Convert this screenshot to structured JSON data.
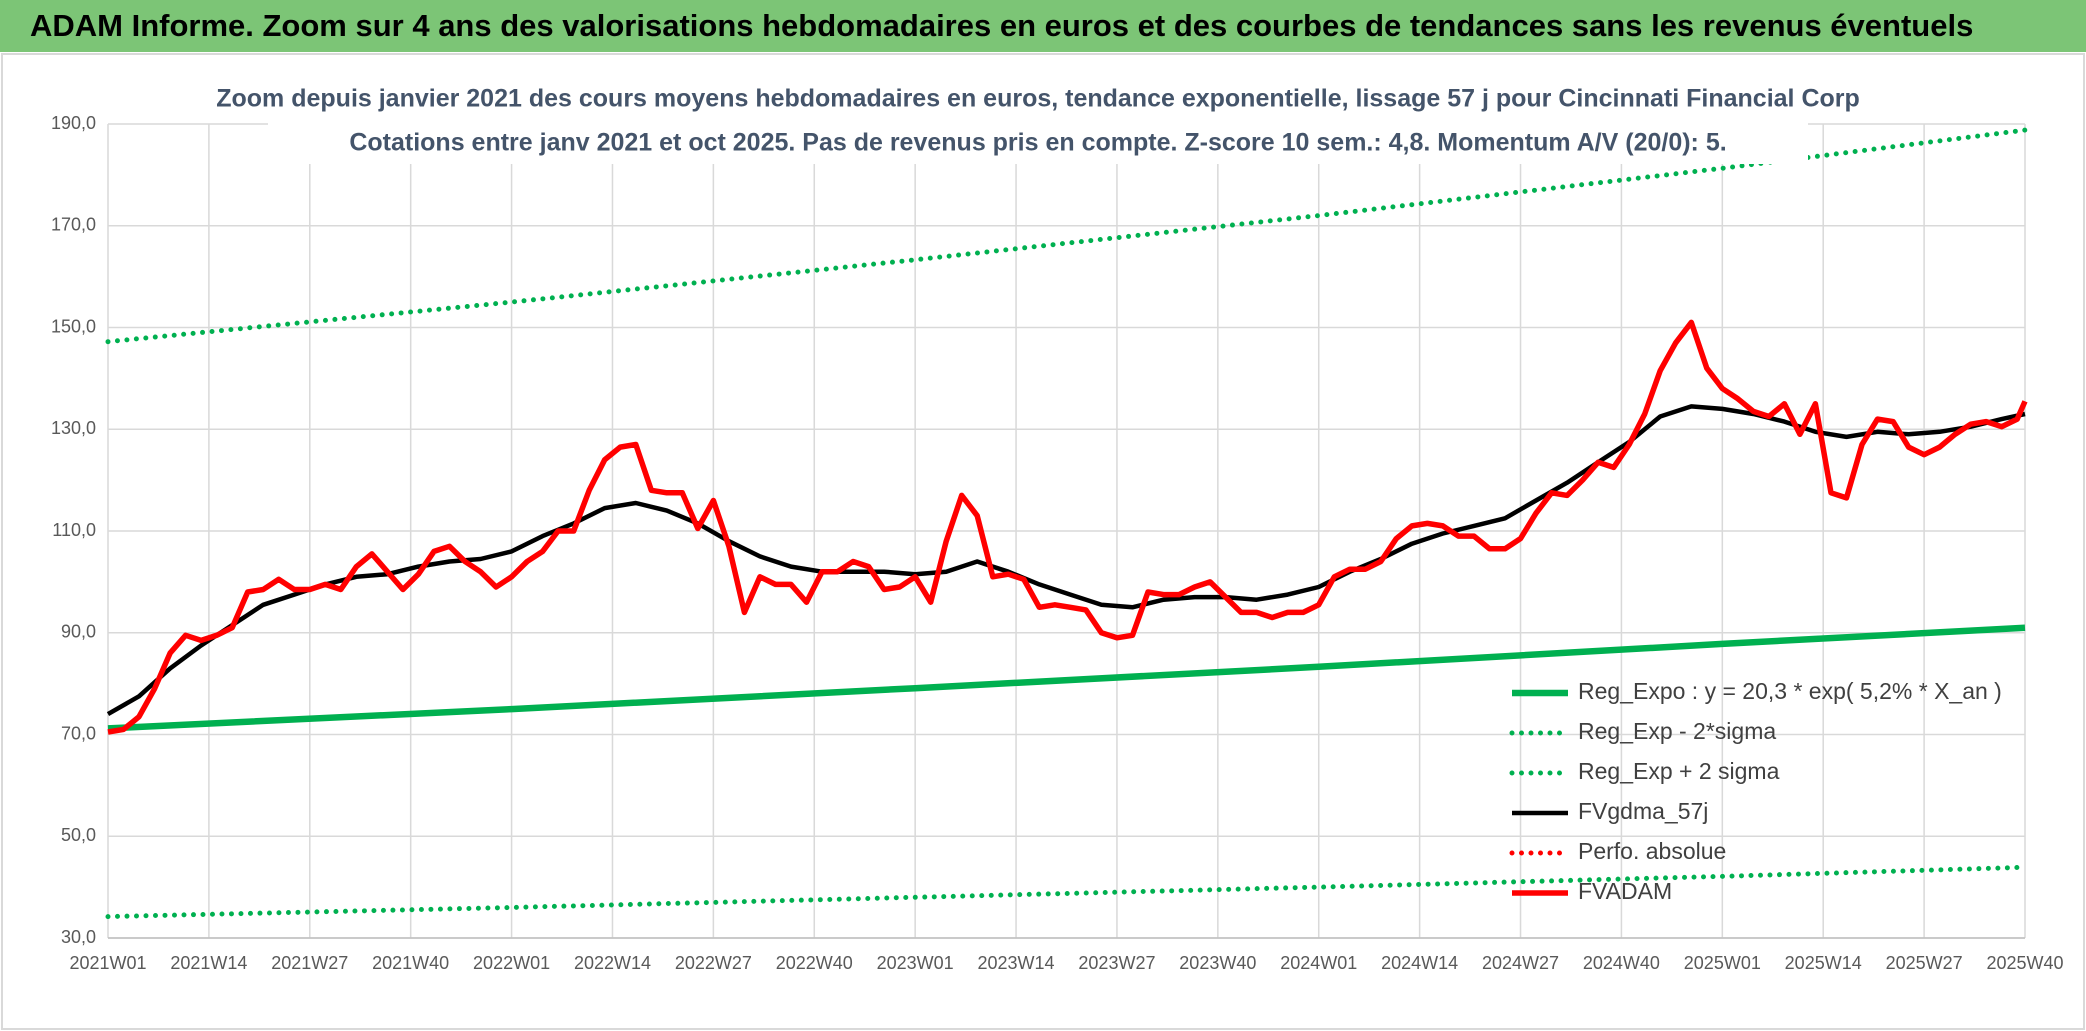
{
  "chart_data": {
    "type": "line",
    "title": "ADAM Informe. Zoom sur 4 ans des valorisations hebdomadaires en euros et des courbes de tendances sans les revenus éventuels",
    "subtitle": [
      "Zoom depuis janvier 2021 des cours moyens hebdomadaires en euros, tendance exponentielle, lissage 57 j pour Cincinnati Financial Corp",
      "Cotations entre janv 2021 et oct 2025. Pas de revenus pris en compte. Z-score 10 sem.: 4,8. Momentum A/V (20/0): 5."
    ],
    "xlim": [
      0,
      247
    ],
    "xticks": [
      {
        "value": 0,
        "label": "2021W01"
      },
      {
        "value": 13,
        "label": "2021W14"
      },
      {
        "value": 26,
        "label": "2021W27"
      },
      {
        "value": 39,
        "label": "2021W40"
      },
      {
        "value": 52,
        "label": "2022W01"
      },
      {
        "value": 65,
        "label": "2022W14"
      },
      {
        "value": 78,
        "label": "2022W27"
      },
      {
        "value": 91,
        "label": "2022W40"
      },
      {
        "value": 104,
        "label": "2023W01"
      },
      {
        "value": 117,
        "label": "2023W14"
      },
      {
        "value": 130,
        "label": "2023W27"
      },
      {
        "value": 143,
        "label": "2023W40"
      },
      {
        "value": 156,
        "label": "2024W01"
      },
      {
        "value": 169,
        "label": "2024W14"
      },
      {
        "value": 182,
        "label": "2024W27"
      },
      {
        "value": 195,
        "label": "2024W40"
      },
      {
        "value": 208,
        "label": "2025W01"
      },
      {
        "value": 221,
        "label": "2025W14"
      },
      {
        "value": 234,
        "label": "2025W27"
      },
      {
        "value": 247,
        "label": "2025W40"
      }
    ],
    "ylim": [
      30,
      190
    ],
    "yticks": [
      {
        "value": 30,
        "label": "30,0"
      },
      {
        "value": 50,
        "label": "50,0"
      },
      {
        "value": 70,
        "label": "70,0"
      },
      {
        "value": 90,
        "label": "90,0"
      },
      {
        "value": 110,
        "label": "110,0"
      },
      {
        "value": 130,
        "label": "130,0"
      },
      {
        "value": 150,
        "label": "150,0"
      },
      {
        "value": 170,
        "label": "170,0"
      },
      {
        "value": 190,
        "label": "190,0"
      }
    ],
    "grid": true,
    "legend": "lower right",
    "series": [
      {
        "name": "Reg_Expo : y = 20,3 * exp( 5,2% *  X_an )",
        "color": "#00b050",
        "style": "solid",
        "x": [
          0,
          52,
          104,
          156,
          208,
          247
        ],
        "values": [
          71.2,
          75.0,
          79.1,
          83.3,
          87.8,
          91.0
        ]
      },
      {
        "name": "Reg_Exp - 2*sigma",
        "color": "#00b050",
        "style": "dotted",
        "x": [
          0,
          52,
          104,
          156,
          208,
          247
        ],
        "values": [
          34.2,
          36.0,
          38.0,
          40.0,
          42.1,
          43.9
        ]
      },
      {
        "name": "Reg_Exp + 2 sigma",
        "color": "#00b050",
        "style": "dotted",
        "x": [
          0,
          52,
          104,
          156,
          208,
          247
        ],
        "values": [
          147.2,
          155.0,
          163.3,
          172.0,
          181.3,
          188.8
        ]
      },
      {
        "name": "FVgdma_57j",
        "color": "#000000",
        "style": "solid",
        "x": [
          0,
          4,
          8,
          12,
          16,
          20,
          24,
          28,
          32,
          36,
          40,
          44,
          48,
          52,
          56,
          60,
          64,
          68,
          72,
          76,
          80,
          84,
          88,
          92,
          96,
          100,
          104,
          108,
          112,
          116,
          120,
          124,
          128,
          132,
          136,
          140,
          144,
          148,
          152,
          156,
          160,
          164,
          168,
          172,
          176,
          180,
          184,
          188,
          192,
          196,
          200,
          204,
          208,
          212,
          216,
          220,
          224,
          228,
          232,
          236,
          240,
          244,
          247
        ],
        "values": [
          74,
          77.5,
          83,
          87.5,
          91.5,
          95.5,
          97.5,
          99.5,
          101,
          101.5,
          103,
          104,
          104.5,
          106,
          109,
          111.5,
          114.5,
          115.5,
          114,
          111.5,
          108,
          105,
          103,
          102,
          102,
          102,
          101.5,
          102,
          104,
          102,
          99.5,
          97.5,
          95.5,
          95,
          96.5,
          97,
          97,
          96.5,
          97.5,
          99,
          102,
          104.5,
          107.5,
          109.5,
          111,
          112.5,
          116,
          119.5,
          123.5,
          127.5,
          132.5,
          134.5,
          134,
          133,
          131.5,
          129.5,
          128.5,
          129.5,
          129,
          129.5,
          130.5,
          132,
          133
        ]
      },
      {
        "name": "Perfo. absolue",
        "color": "#ff0000",
        "style": "dotted"
      },
      {
        "name": "FVADAM",
        "color": "#ff0000",
        "style": "solid",
        "x": [
          0,
          2,
          4,
          6,
          8,
          10,
          12,
          14,
          16,
          18,
          20,
          22,
          24,
          26,
          28,
          30,
          32,
          34,
          36,
          38,
          40,
          42,
          44,
          46,
          48,
          50,
          52,
          54,
          56,
          58,
          60,
          62,
          64,
          66,
          68,
          70,
          72,
          74,
          76,
          78,
          80,
          82,
          84,
          86,
          88,
          90,
          92,
          94,
          96,
          98,
          100,
          102,
          104,
          106,
          108,
          110,
          112,
          114,
          116,
          118,
          120,
          122,
          124,
          126,
          128,
          130,
          132,
          134,
          136,
          138,
          140,
          142,
          144,
          146,
          148,
          150,
          152,
          154,
          156,
          158,
          160,
          162,
          164,
          166,
          168,
          170,
          172,
          174,
          176,
          178,
          180,
          182,
          184,
          186,
          188,
          190,
          192,
          194,
          196,
          198,
          200,
          202,
          204,
          206,
          208,
          210,
          212,
          214,
          216,
          218,
          220,
          222,
          224,
          226,
          228,
          230,
          232,
          234,
          236,
          238,
          240,
          242,
          244,
          246,
          247
        ],
        "values": [
          70.5,
          71,
          73.5,
          79,
          86,
          89.5,
          88.5,
          89.5,
          91,
          98,
          98.5,
          100.5,
          98.5,
          98.5,
          99.5,
          98.5,
          103,
          105.5,
          102,
          98.5,
          101.5,
          106,
          107,
          104,
          102,
          99,
          101,
          104,
          106,
          110,
          110,
          118,
          124,
          126.5,
          127,
          118,
          117.5,
          117.5,
          110.5,
          116,
          107,
          94,
          101,
          99.5,
          99.5,
          96,
          102,
          102,
          104,
          103,
          98.5,
          99,
          101,
          96,
          108,
          117,
          113,
          101,
          101.5,
          100.5,
          95,
          95.5,
          95,
          94.5,
          90,
          89,
          89.5,
          98,
          97.5,
          97.5,
          99,
          100,
          97,
          94,
          94,
          93,
          94,
          94,
          95.5,
          101,
          102.5,
          102.5,
          104,
          108.5,
          111,
          111.5,
          111,
          109,
          109,
          106.5,
          106.5,
          108.5,
          113.5,
          117.5,
          117,
          120,
          123.5,
          122.5,
          127,
          133,
          141.5,
          147,
          151,
          142,
          138,
          136,
          133.5,
          132.5,
          135,
          129,
          135,
          117.5,
          116.5,
          127,
          132,
          131.5,
          126.5,
          125,
          126.5,
          129,
          131,
          131.5,
          130.5,
          132,
          135.5
        ]
      }
    ]
  }
}
